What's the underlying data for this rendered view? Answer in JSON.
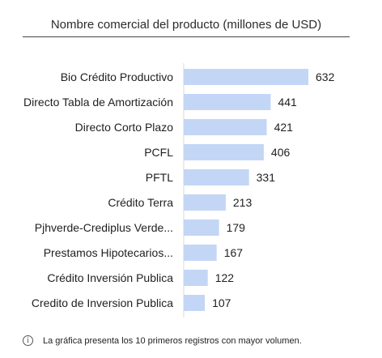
{
  "chart_data": {
    "type": "bar",
    "orientation": "horizontal",
    "title": "Nombre comercial del producto (millones de USD)",
    "categories": [
      "Bio Crédito Productivo",
      "Directo Tabla de Amortización",
      "Directo Corto Plazo",
      "PCFL",
      "PFTL",
      "Crédito Terra",
      "Pjhverde-Crediplus Verde...",
      "Prestamos Hipotecarios...",
      "Crédito Inversión Publica",
      "Credito de Inversion Publica"
    ],
    "values": [
      632,
      441,
      421,
      406,
      331,
      213,
      179,
      167,
      122,
      107
    ],
    "bar_color": "#c3d6f5",
    "xlim": [
      0,
      632
    ],
    "grid": false,
    "legend": "none"
  },
  "footnote": {
    "icon": "info-icon",
    "text": "La gráfica presenta los 10 primeros registros con mayor volumen."
  }
}
